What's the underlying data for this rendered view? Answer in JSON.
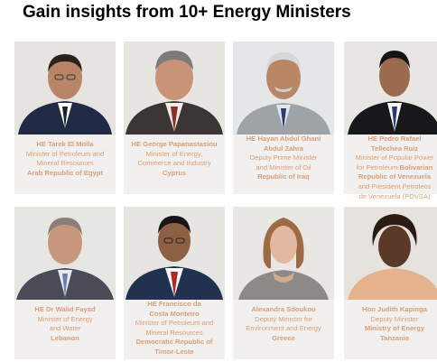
{
  "heading": {
    "title": "Gain insights from 10+ Energy Ministers"
  },
  "colors": {
    "text_accent": "#d9a07a",
    "card_bg": "#f1f0ee",
    "photo_bg": "#e9e7e3"
  },
  "speakers": [
    {
      "name": [
        "HE Tarek El Molla"
      ],
      "role": [
        "Minister of Petroleum and",
        "Mineral Resources"
      ],
      "country": [
        "Arab Republic of Egypt"
      ]
    },
    {
      "name": [
        "HE George Papanastasiou"
      ],
      "role": [
        "Minister of Energy,",
        "Commerce and Industry"
      ],
      "country": [
        "Cyprus"
      ]
    },
    {
      "name": [
        "HE Hayan Abdul Ghani",
        "Abdul Zahra"
      ],
      "role": [
        "Deputy Prime Minister",
        "and Minister of Oil"
      ],
      "country": [
        "Republic of Iraq"
      ]
    },
    {
      "name": [
        "HE Pedro Rafael",
        "Tellechea Ruiz"
      ],
      "role": [
        "Minister of Popular Power",
        "for Petroleum"
      ],
      "country": [
        "Bolivarian",
        "Republic of Venezuela",
        "and President Petroleos",
        "de Venezuela (PDVSA)"
      ]
    },
    {
      "name": [
        "HE Dr Walid Fayad"
      ],
      "role": [
        "Minister of Energy",
        "and Water"
      ],
      "country": [
        "Lebanon"
      ]
    },
    {
      "name": [
        "HE Francisco da",
        "Costa Monteiro"
      ],
      "role": [
        "Minister of Petroleum and",
        "Mineral Resources"
      ],
      "country": [
        "Democratic Republic of",
        "Timor-Leste"
      ]
    },
    {
      "name": [
        "Alexandra Sdoukou"
      ],
      "role": [
        "Deputy Minister for",
        "Environment and Energy"
      ],
      "country": [
        "Greece"
      ]
    },
    {
      "name": [
        "Hon Judith Kapinga"
      ],
      "role": [
        "Deputy Minister"
      ],
      "country": [
        "Ministry of Energy",
        "Tanzania"
      ]
    }
  ]
}
